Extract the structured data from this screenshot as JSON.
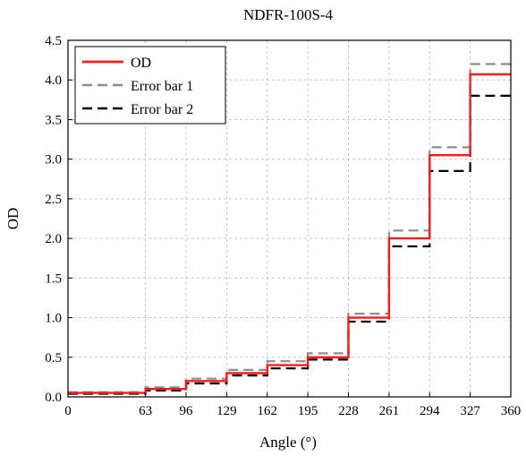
{
  "chart_data": {
    "type": "line",
    "title": "NDFR-100S-4",
    "xlabel": "Angle (°)",
    "ylabel": "OD",
    "xlim": [
      0,
      360
    ],
    "ylim": [
      0,
      4.5
    ],
    "x_ticks": [
      0,
      63,
      96,
      129,
      162,
      195,
      228,
      261,
      294,
      327,
      360
    ],
    "x_tick_labels": [
      "0",
      "63",
      "96",
      "129",
      "162",
      "195",
      "228",
      "261",
      "294",
      "327",
      "360"
    ],
    "y_ticks": [
      0,
      0.5,
      1.0,
      1.5,
      2.0,
      2.5,
      3.0,
      3.5,
      4.0,
      4.5
    ],
    "y_tick_labels": [
      "0.0",
      "0.5",
      "1.0",
      "1.5",
      "2.0",
      "2.5",
      "3.0",
      "3.5",
      "4.0",
      "4.5"
    ],
    "grid": true,
    "legend_position": "top-left",
    "step_edges": [
      0,
      63,
      96,
      129,
      162,
      195,
      228,
      261,
      294,
      327,
      360
    ],
    "series": [
      {
        "name": "OD",
        "style": "solid",
        "color": "#ff1a1a",
        "values": [
          0.05,
          0.1,
          0.2,
          0.3,
          0.4,
          0.5,
          1.0,
          2.0,
          3.05,
          4.07
        ]
      },
      {
        "name": "Error bar 1",
        "style": "dashed",
        "color": "#8c8c8c",
        "values": [
          0.06,
          0.12,
          0.23,
          0.34,
          0.45,
          0.55,
          1.05,
          2.1,
          3.15,
          4.2
        ]
      },
      {
        "name": "Error bar 2",
        "style": "dashed",
        "color": "#000000",
        "values": [
          0.04,
          0.08,
          0.17,
          0.27,
          0.36,
          0.47,
          0.95,
          1.9,
          2.85,
          3.8
        ]
      }
    ]
  }
}
